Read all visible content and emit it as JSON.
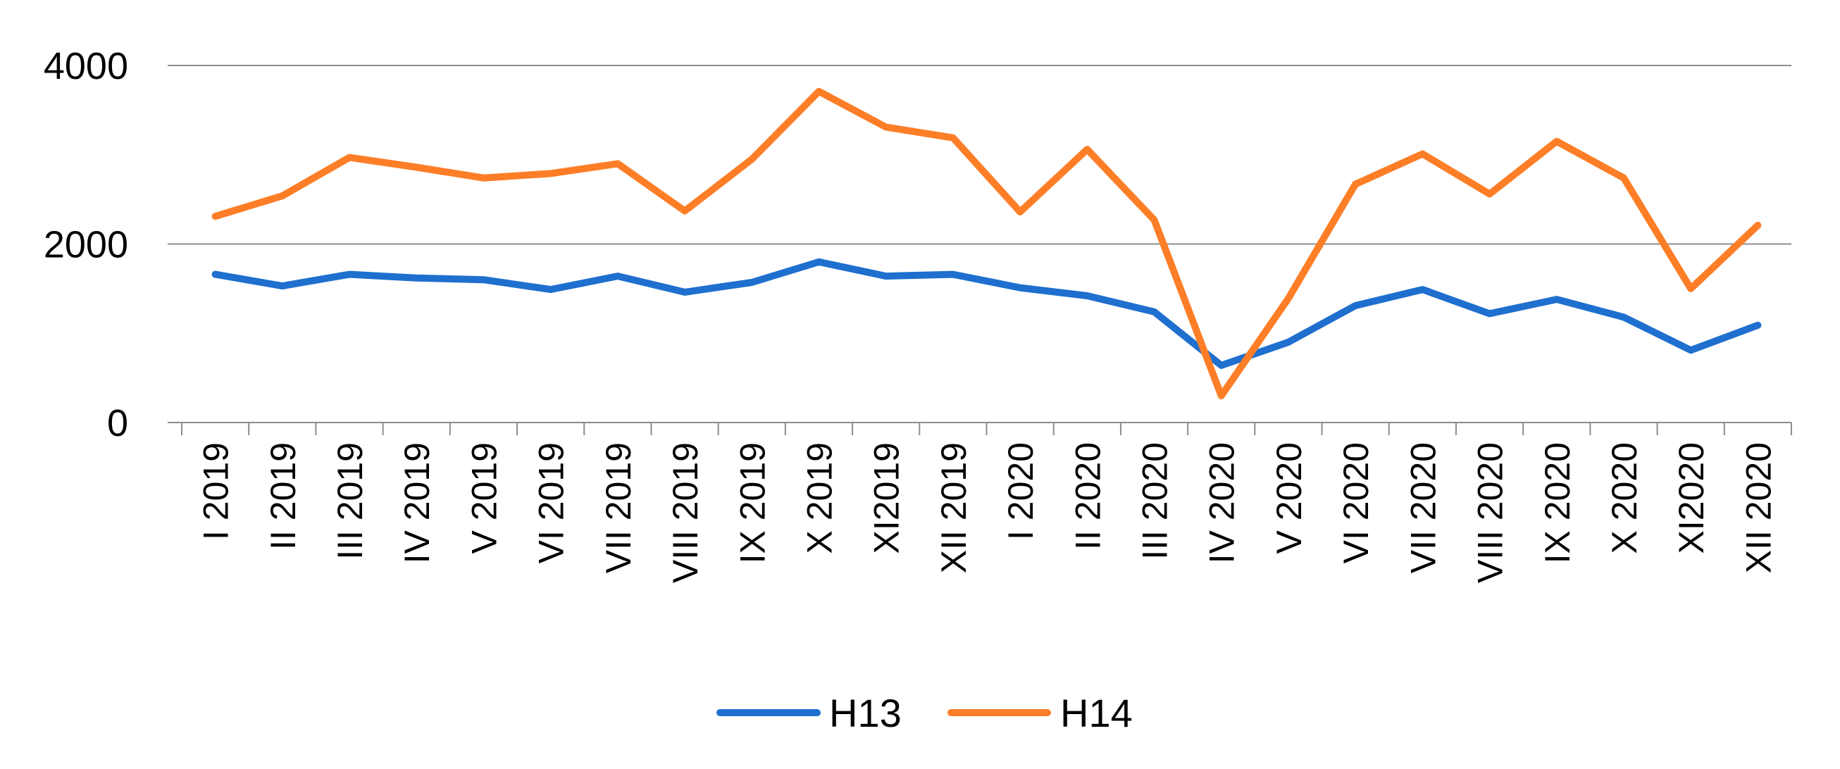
{
  "chart_data": {
    "type": "line",
    "categories": [
      "I 2019",
      "II 2019",
      "III 2019",
      "IV 2019",
      "V 2019",
      "VI 2019",
      "VII 2019",
      "VIII 2019",
      "IX 2019",
      "X 2019",
      "XI2019",
      "XII 2019",
      "I 2020",
      "II 2020",
      "III 2020",
      "IV 2020",
      "V 2020",
      "VI 2020",
      "VII 2020",
      "VIII 2020",
      "IX 2020",
      "X 2020",
      "XI2020",
      "XII 2020"
    ],
    "series": [
      {
        "name": "H13",
        "color": "#1f6fcf",
        "values": [
          1660,
          1530,
          1660,
          1620,
          1600,
          1490,
          1640,
          1460,
          1570,
          1800,
          1640,
          1660,
          1510,
          1420,
          1240,
          640,
          900,
          1310,
          1490,
          1220,
          1380,
          1180,
          810,
          1090
        ]
      },
      {
        "name": "H14",
        "color": "#fd7e27",
        "values": [
          2310,
          2540,
          2970,
          2860,
          2740,
          2790,
          2900,
          2370,
          2950,
          3710,
          3310,
          3190,
          2360,
          3060,
          2270,
          300,
          1390,
          2670,
          3010,
          2560,
          3150,
          2740,
          1500,
          2210
        ]
      }
    ],
    "y_ticks": [
      "0",
      "2000",
      "4000"
    ],
    "ylim": [
      0,
      4000
    ],
    "grid": true,
    "legend_position": "bottom"
  }
}
